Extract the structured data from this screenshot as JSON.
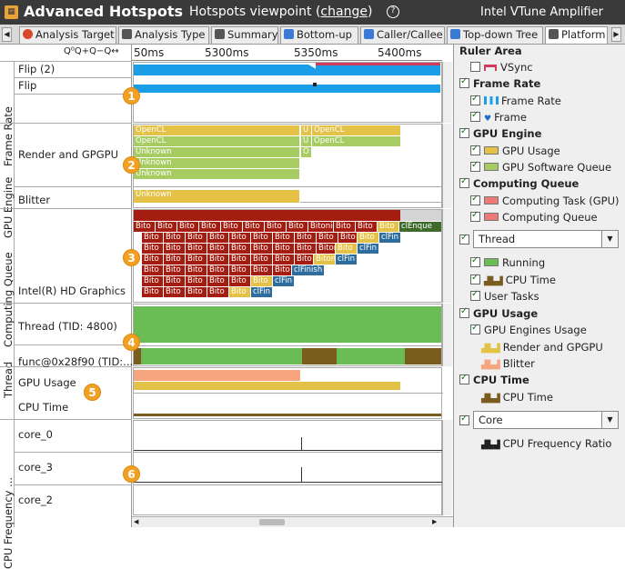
{
  "title": {
    "app": "Advanced Hotspots",
    "viewpoint_prefix": "Hotspots viewpoint (",
    "viewpoint_link": "change",
    "viewpoint_suffix": ")",
    "product": "Intel VTune Amplifier"
  },
  "tabs": [
    {
      "label": "Analysis Target",
      "icon_color": "#d9482b"
    },
    {
      "label": "Analysis Type",
      "icon_color": "#555555"
    },
    {
      "label": "Summary",
      "icon_color": "#555555"
    },
    {
      "label": "Bottom-up",
      "icon_color": "#3a7bd5"
    },
    {
      "label": "Caller/Callee",
      "icon_color": "#3a7bd5"
    },
    {
      "label": "Top-down Tree",
      "icon_color": "#3a7bd5"
    },
    {
      "label": "Platform",
      "icon_color": "#555555"
    }
  ],
  "toolbar": {
    "zoom_glyphs": "Q⁰Q+Q−Q↔"
  },
  "timeline": {
    "ticks": [
      "50ms",
      "5300ms",
      "5350ms",
      "5400ms"
    ]
  },
  "groups": {
    "frame_rate": "Frame Rate",
    "gpu_engine": "GPU Engine",
    "computing_queue": "Computing Queue",
    "thread": "Thread",
    "cpu_frequency": "CPU Frequency ..."
  },
  "rows": {
    "flip2": "Flip (2)",
    "flip": "Flip",
    "render": "Render and GPGPU",
    "blitter": "Blitter",
    "hd_graphics": "Intel(R) HD Graphics",
    "thread_tid": "Thread (TID: 4800)",
    "func": "func@0x28f90 (TID:...",
    "gpu_usage": "GPU Usage",
    "cpu_time": "CPU Time",
    "core0": "core_0",
    "core3": "core_3",
    "core2": "core_2"
  },
  "gpu_bars": {
    "opencl": "OpenCL",
    "unknown": "Unknown",
    "u": "U",
    "o": "O"
  },
  "queue": {
    "bito": "Bito",
    "bitonic": "Bitonic",
    "clfin": "clFin",
    "clfinish": "clFinish",
    "clenque": "clEnque"
  },
  "badges": [
    "1",
    "2",
    "3",
    "4",
    "5",
    "6"
  ],
  "right_panel": {
    "title": "Ruler Area",
    "vsync": "VSync",
    "frame_rate_group": "Frame Rate",
    "frame_rate": "Frame Rate",
    "frame": "Frame",
    "gpu_engine_group": "GPU Engine",
    "gpu_usage": "GPU Usage",
    "gpu_sw_queue": "GPU Software Queue",
    "computing_queue_group": "Computing Queue",
    "computing_task": "Computing Task (GPU)",
    "computing_queue": "Computing Queue",
    "thread_select": "Thread",
    "running": "Running",
    "cpu_time": "CPU Time",
    "user_tasks": "User Tasks",
    "gpu_usage_group": "GPU Usage",
    "gpu_engines_usage": "GPU Engines Usage",
    "render_gpgpu": "Render and GPGPU",
    "blitter": "Blitter",
    "cpu_time_group": "CPU Time",
    "cpu_time_sub": "CPU Time",
    "core_select": "Core",
    "cpu_freq_ratio": "CPU Frequency Ratio"
  },
  "colors": {
    "title_bg": "#3a3a3a",
    "accent_blue": "#1a9ee8",
    "opencl_yellow": "#e3c247",
    "unknown_green": "#a7cc62",
    "bito_red": "#a51d10",
    "clfin_blue": "#2e6d9e",
    "thread_green": "#6abd55",
    "gpu_usage_salmon": "#f7a57e",
    "badge_orange": "#f2a024"
  }
}
